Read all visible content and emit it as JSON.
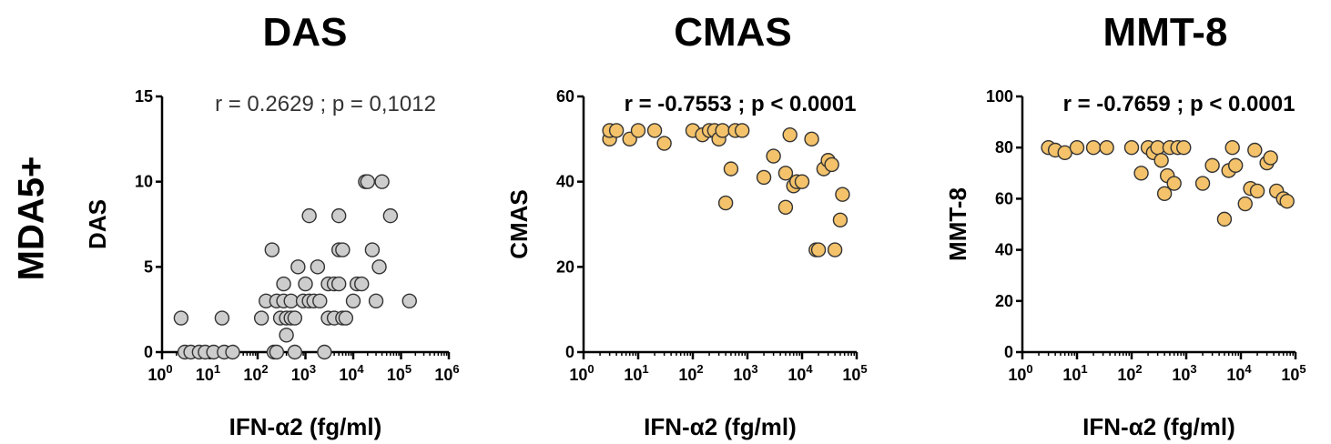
{
  "row_label": "MDA5+",
  "colors": {
    "gray_fill": "#cdcdcd",
    "gold_fill": "#f3c26a",
    "stroke": "#333333"
  },
  "chart_data": [
    {
      "type": "scatter",
      "title": "DAS",
      "xlabel": "IFN-α2 (fg/ml)",
      "ylabel": "DAS",
      "x_scale": "log",
      "xlim": [
        1,
        1000000
      ],
      "ylim": [
        0,
        15
      ],
      "y_ticks": [
        0,
        5,
        10,
        15
      ],
      "x_tick_exponents": [
        0,
        1,
        2,
        3,
        4,
        5,
        6
      ],
      "x_tick_base": "10",
      "annotation": "r = 0.2629 ; p = 0,1012",
      "annotation_bold": false,
      "marker_color": "#cdcdcd",
      "points": [
        [
          2.5,
          2
        ],
        [
          3,
          0
        ],
        [
          4,
          0
        ],
        [
          6,
          0
        ],
        [
          8,
          0
        ],
        [
          12,
          0
        ],
        [
          18,
          2
        ],
        [
          20,
          0
        ],
        [
          30,
          0
        ],
        [
          120,
          2
        ],
        [
          150,
          3
        ],
        [
          200,
          6
        ],
        [
          220,
          0
        ],
        [
          250,
          0
        ],
        [
          250,
          3
        ],
        [
          300,
          2
        ],
        [
          350,
          4
        ],
        [
          350,
          3
        ],
        [
          400,
          2
        ],
        [
          400,
          1
        ],
        [
          500,
          2
        ],
        [
          500,
          3
        ],
        [
          600,
          0
        ],
        [
          600,
          2
        ],
        [
          700,
          5
        ],
        [
          900,
          3
        ],
        [
          1000,
          4
        ],
        [
          1200,
          8
        ],
        [
          1200,
          3
        ],
        [
          1500,
          3
        ],
        [
          1800,
          5
        ],
        [
          2000,
          3
        ],
        [
          2500,
          0
        ],
        [
          3000,
          2
        ],
        [
          3000,
          4
        ],
        [
          4000,
          4
        ],
        [
          4000,
          2
        ],
        [
          5000,
          8
        ],
        [
          5000,
          6
        ],
        [
          5000,
          4
        ],
        [
          6000,
          2
        ],
        [
          6000,
          6
        ],
        [
          7000,
          2
        ],
        [
          10000,
          3
        ],
        [
          12000,
          4
        ],
        [
          15000,
          4
        ],
        [
          18000,
          10
        ],
        [
          20000,
          10
        ],
        [
          25000,
          6
        ],
        [
          30000,
          3
        ],
        [
          35000,
          5
        ],
        [
          40000,
          10
        ],
        [
          60000,
          8
        ],
        [
          150000,
          3
        ]
      ]
    },
    {
      "type": "scatter",
      "title": "CMAS",
      "xlabel": "IFN-α2 (fg/ml)",
      "ylabel": "CMAS",
      "x_scale": "log",
      "xlim": [
        1,
        100000
      ],
      "ylim": [
        0,
        60
      ],
      "y_ticks": [
        0,
        20,
        40,
        60
      ],
      "x_tick_exponents": [
        0,
        1,
        2,
        3,
        4,
        5
      ],
      "x_tick_base": "10",
      "annotation": "r = -0.7553 ; p < 0.0001",
      "annotation_bold": true,
      "marker_color": "#f3c26a",
      "points": [
        [
          3,
          50
        ],
        [
          3,
          52
        ],
        [
          4,
          52
        ],
        [
          7,
          50
        ],
        [
          10,
          52
        ],
        [
          20,
          52
        ],
        [
          30,
          49
        ],
        [
          100,
          52
        ],
        [
          150,
          51
        ],
        [
          200,
          52
        ],
        [
          250,
          52
        ],
        [
          300,
          50
        ],
        [
          350,
          52
        ],
        [
          400,
          35
        ],
        [
          500,
          43
        ],
        [
          600,
          52
        ],
        [
          800,
          52
        ],
        [
          2000,
          41
        ],
        [
          3000,
          46
        ],
        [
          5000,
          34
        ],
        [
          5000,
          42
        ],
        [
          6000,
          51
        ],
        [
          7000,
          39
        ],
        [
          8000,
          40
        ],
        [
          10000,
          40
        ],
        [
          15000,
          50
        ],
        [
          18000,
          24
        ],
        [
          20000,
          24
        ],
        [
          25000,
          43
        ],
        [
          30000,
          45
        ],
        [
          35000,
          44
        ],
        [
          40000,
          24
        ],
        [
          50000,
          31
        ],
        [
          55000,
          37
        ]
      ]
    },
    {
      "type": "scatter",
      "title": "MMT-8",
      "xlabel": "IFN-α2 (fg/ml)",
      "ylabel": "MMT-8",
      "x_scale": "log",
      "xlim": [
        1,
        100000
      ],
      "ylim": [
        0,
        100
      ],
      "y_ticks": [
        0,
        20,
        40,
        60,
        80,
        100
      ],
      "x_tick_exponents": [
        0,
        1,
        2,
        3,
        4,
        5
      ],
      "x_tick_base": "10",
      "annotation": "r = -0.7659 ; p < 0.0001",
      "annotation_bold": true,
      "marker_color": "#f3c26a",
      "points": [
        [
          3,
          80
        ],
        [
          4,
          79
        ],
        [
          6,
          78
        ],
        [
          10,
          80
        ],
        [
          20,
          80
        ],
        [
          35,
          80
        ],
        [
          100,
          80
        ],
        [
          150,
          70
        ],
        [
          200,
          80
        ],
        [
          250,
          78
        ],
        [
          300,
          80
        ],
        [
          350,
          75
        ],
        [
          400,
          62
        ],
        [
          450,
          69
        ],
        [
          500,
          80
        ],
        [
          600,
          66
        ],
        [
          700,
          80
        ],
        [
          900,
          80
        ],
        [
          2000,
          66
        ],
        [
          3000,
          73
        ],
        [
          5000,
          52
        ],
        [
          6000,
          71
        ],
        [
          7000,
          80
        ],
        [
          8000,
          73
        ],
        [
          12000,
          58
        ],
        [
          15000,
          64
        ],
        [
          18000,
          79
        ],
        [
          20000,
          63
        ],
        [
          30000,
          74
        ],
        [
          35000,
          76
        ],
        [
          45000,
          63
        ],
        [
          60000,
          60
        ],
        [
          70000,
          59
        ]
      ]
    }
  ]
}
